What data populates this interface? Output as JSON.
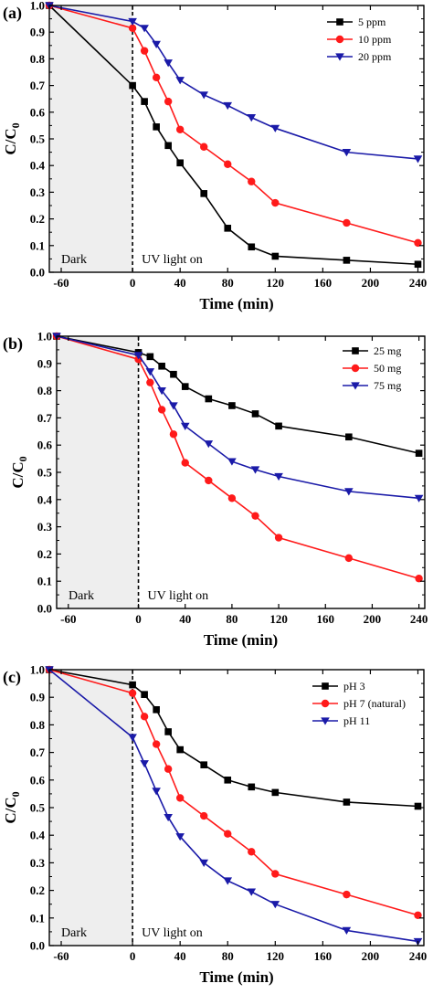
{
  "chart_data": [
    {
      "type": "line",
      "panel_label": "(a)",
      "xlabel": "Time (min)",
      "ylabel_main": "C/C",
      "ylabel_sub": "0",
      "xlim": [
        -70,
        245
      ],
      "ylim": [
        0,
        1.0
      ],
      "xticks": [
        -60,
        0,
        40,
        80,
        120,
        160,
        200,
        240
      ],
      "xtick_labels": [
        "-60",
        "0",
        "40",
        "80",
        "120",
        "160",
        "200",
        "240"
      ],
      "yticks": [
        0,
        0.1,
        0.2,
        0.3,
        0.4,
        0.5,
        0.6,
        0.7,
        0.8,
        0.9,
        1.0
      ],
      "ytick_labels": [
        "0.0",
        "0.1",
        "0.2",
        "0.3",
        "0.4",
        "0.5",
        "0.6",
        "0.7",
        "0.8",
        "0.9",
        "1.0"
      ],
      "dark_region": [
        -70,
        0
      ],
      "annotations": {
        "dark": "Dark",
        "uv": "UV light on"
      },
      "legend_position": "top-right",
      "series": [
        {
          "name": "5 ppm",
          "color": "#000000",
          "marker": "square",
          "x": [
            -70,
            0,
            10,
            20,
            30,
            40,
            60,
            80,
            100,
            120,
            180,
            240
          ],
          "y": [
            1.0,
            0.7,
            0.64,
            0.545,
            0.475,
            0.41,
            0.295,
            0.165,
            0.095,
            0.06,
            0.045,
            0.03
          ]
        },
        {
          "name": "10 ppm",
          "color": "#ff1a1a",
          "marker": "circle",
          "x": [
            -70,
            0,
            10,
            20,
            30,
            40,
            60,
            80,
            100,
            120,
            180,
            240
          ],
          "y": [
            1.0,
            0.915,
            0.83,
            0.73,
            0.64,
            0.535,
            0.47,
            0.405,
            0.34,
            0.26,
            0.185,
            0.11
          ]
        },
        {
          "name": "20 ppm",
          "color": "#1a1aa8",
          "marker": "triangle-down",
          "x": [
            -70,
            0,
            10,
            20,
            30,
            40,
            60,
            80,
            100,
            120,
            180,
            240
          ],
          "y": [
            1.0,
            0.94,
            0.915,
            0.855,
            0.785,
            0.72,
            0.665,
            0.625,
            0.58,
            0.54,
            0.45,
            0.425
          ]
        }
      ]
    },
    {
      "type": "line",
      "panel_label": "(b)",
      "xlabel": "Time (min)",
      "ylabel_main": "C/C",
      "ylabel_sub": "0",
      "xlim": [
        -70,
        245
      ],
      "ylim": [
        0,
        1.0
      ],
      "xticks": [
        -60,
        0,
        40,
        80,
        120,
        160,
        200,
        240
      ],
      "xtick_labels": [
        "-60",
        "0",
        "40",
        "80",
        "120",
        "160",
        "200",
        "240"
      ],
      "yticks": [
        0,
        0.1,
        0.2,
        0.3,
        0.4,
        0.5,
        0.6,
        0.7,
        0.8,
        0.9,
        1.0
      ],
      "ytick_labels": [
        "0.0",
        "0.1",
        "0.2",
        "0.3",
        "0.4",
        "0.5",
        "0.6",
        "0.7",
        "0.8",
        "0.9",
        "1.0"
      ],
      "dark_region": [
        -70,
        0
      ],
      "annotations": {
        "dark": "Dark",
        "uv": "UV light on"
      },
      "legend_position": "top-right",
      "series": [
        {
          "name": "25 mg",
          "color": "#000000",
          "marker": "square",
          "x": [
            -70,
            0,
            10,
            20,
            30,
            40,
            60,
            80,
            100,
            120,
            180,
            240
          ],
          "y": [
            1.0,
            0.94,
            0.925,
            0.89,
            0.86,
            0.815,
            0.77,
            0.745,
            0.715,
            0.67,
            0.63,
            0.57
          ]
        },
        {
          "name": "50 mg",
          "color": "#ff1a1a",
          "marker": "circle",
          "x": [
            -70,
            0,
            10,
            20,
            30,
            40,
            60,
            80,
            100,
            120,
            180,
            240
          ],
          "y": [
            1.0,
            0.915,
            0.83,
            0.73,
            0.64,
            0.535,
            0.47,
            0.405,
            0.34,
            0.26,
            0.185,
            0.11
          ]
        },
        {
          "name": "75 mg",
          "color": "#1a1aa8",
          "marker": "triangle-down",
          "x": [
            -70,
            0,
            10,
            20,
            30,
            40,
            60,
            80,
            100,
            120,
            180,
            240
          ],
          "y": [
            1.0,
            0.93,
            0.87,
            0.8,
            0.745,
            0.67,
            0.605,
            0.54,
            0.51,
            0.485,
            0.43,
            0.405
          ]
        }
      ]
    },
    {
      "type": "line",
      "panel_label": "(c)",
      "xlabel": "Time (min)",
      "ylabel_main": "C/C",
      "ylabel_sub": "0",
      "xlim": [
        -70,
        245
      ],
      "ylim": [
        0,
        1.0
      ],
      "xticks": [
        -60,
        0,
        40,
        80,
        120,
        160,
        200,
        240
      ],
      "xtick_labels": [
        "-60",
        "0",
        "40",
        "80",
        "120",
        "160",
        "200",
        "240"
      ],
      "yticks": [
        0,
        0.1,
        0.2,
        0.3,
        0.4,
        0.5,
        0.6,
        0.7,
        0.8,
        0.9,
        1.0
      ],
      "ytick_labels": [
        "0.0",
        "0.1",
        "0.2",
        "0.3",
        "0.4",
        "0.5",
        "0.6",
        "0.7",
        "0.8",
        "0.9",
        "1.0"
      ],
      "dark_region": [
        -70,
        0
      ],
      "annotations": {
        "dark": "Dark",
        "uv": "UV light on"
      },
      "legend_position": "top-right",
      "series": [
        {
          "name": "pH 3",
          "color": "#000000",
          "marker": "square",
          "x": [
            -70,
            0,
            10,
            20,
            30,
            40,
            60,
            80,
            100,
            120,
            180,
            240
          ],
          "y": [
            1.0,
            0.945,
            0.91,
            0.855,
            0.775,
            0.71,
            0.655,
            0.6,
            0.575,
            0.555,
            0.52,
            0.505
          ]
        },
        {
          "name": "pH 7 (natural)",
          "color": "#ff1a1a",
          "marker": "circle",
          "x": [
            -70,
            0,
            10,
            20,
            30,
            40,
            60,
            80,
            100,
            120,
            180,
            240
          ],
          "y": [
            1.0,
            0.915,
            0.83,
            0.73,
            0.64,
            0.535,
            0.47,
            0.405,
            0.34,
            0.26,
            0.185,
            0.11
          ]
        },
        {
          "name": "pH 11",
          "color": "#1a1aa8",
          "marker": "triangle-down",
          "x": [
            -70,
            0,
            10,
            20,
            30,
            40,
            60,
            80,
            100,
            120,
            180,
            240
          ],
          "y": [
            1.0,
            0.755,
            0.66,
            0.56,
            0.465,
            0.395,
            0.3,
            0.235,
            0.195,
            0.15,
            0.055,
            0.015
          ]
        }
      ]
    }
  ]
}
